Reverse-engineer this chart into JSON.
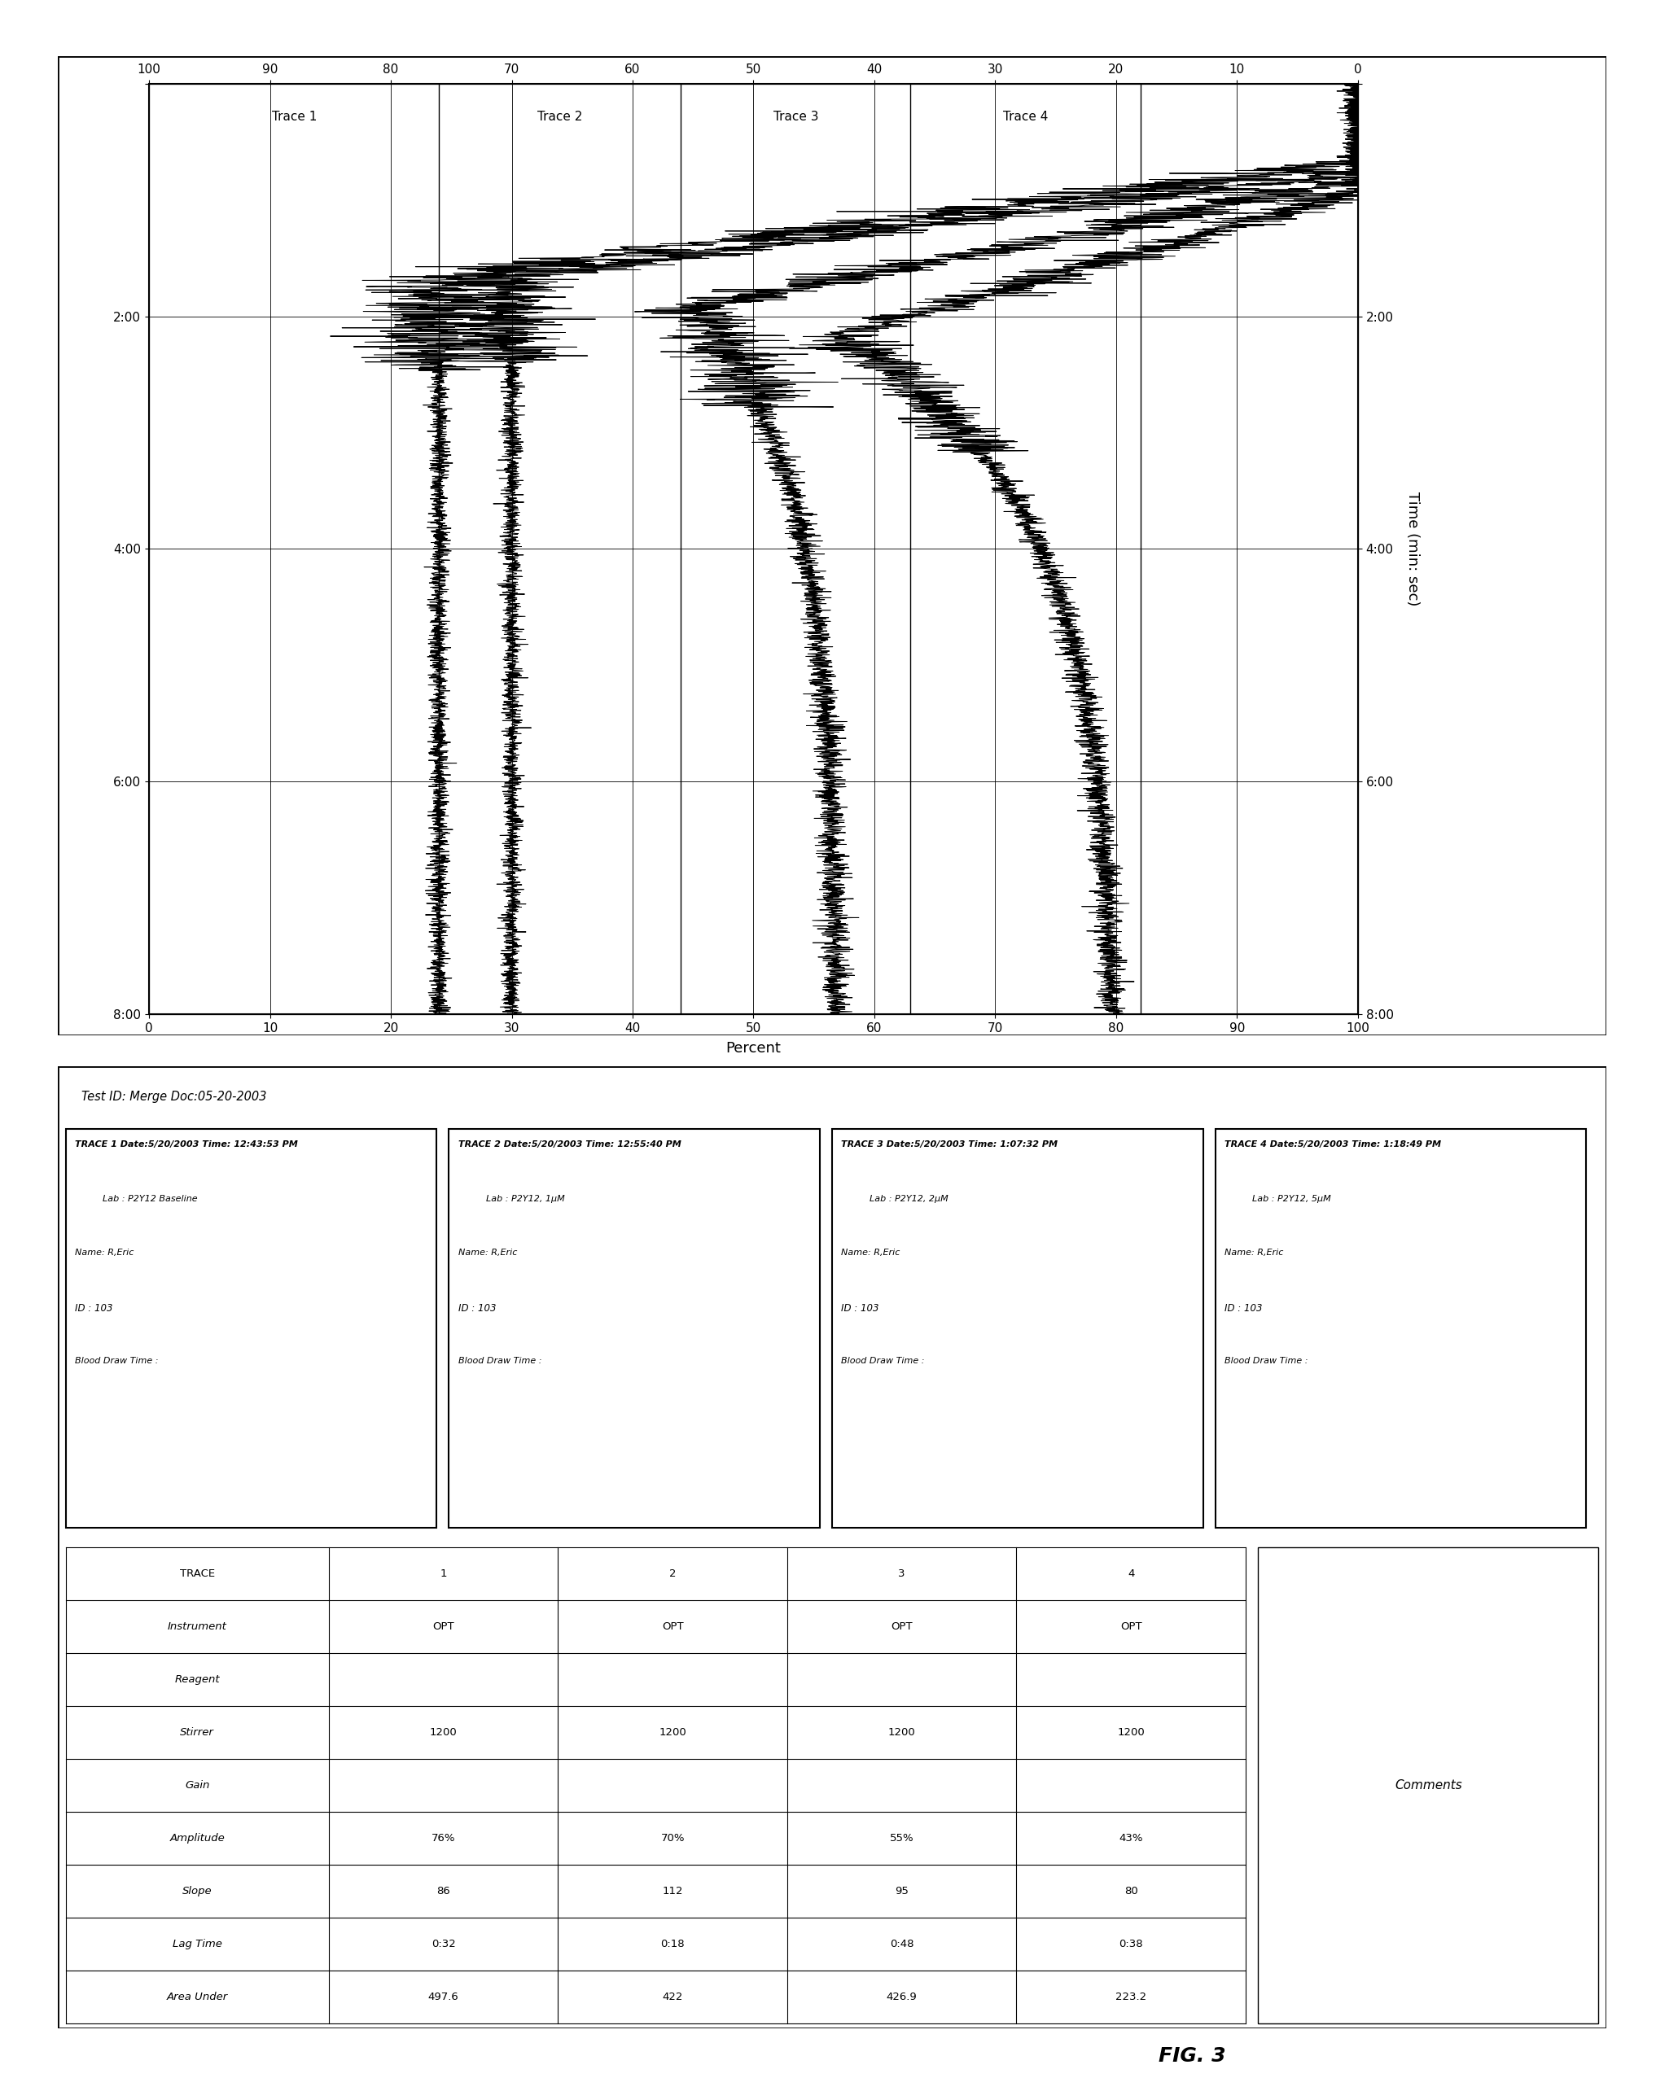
{
  "test_id": "Test ID: Merge Doc:05-20-2003",
  "traces": [
    {
      "trace_num": "TRACE 1",
      "date_time": "Date:5/20/2003 Time: 12:43:53 PM",
      "lab": "Lab : P2Y12 Baseline",
      "name": "Name: R,Eric",
      "id": "ID : 103",
      "blood_draw": "Blood Draw Time :"
    },
    {
      "trace_num": "TRACE 2",
      "date_time": "Date:5/20/2003 Time: 12:55:40 PM",
      "lab": "Lab : P2Y12, 1μM",
      "name": "Name: R,Eric",
      "id": "ID : 103",
      "blood_draw": "Blood Draw Time :"
    },
    {
      "trace_num": "TRACE 3",
      "date_time": "Date:5/20/2003 Time: 1:07:32 PM",
      "lab": "Lab : P2Y12, 2μM",
      "name": "Name: R,Eric",
      "id": "ID : 103",
      "blood_draw": "Blood Draw Time :"
    },
    {
      "trace_num": "TRACE 4",
      "date_time": "Date:5/20/2003 Time: 1:18:49 PM",
      "lab": "Lab : P2Y12, 5μM",
      "name": "Name: R,Eric",
      "id": "ID : 103",
      "blood_draw": "Blood Draw Time :"
    }
  ],
  "metrics_col_headers": [
    "TRACE",
    "1",
    "2",
    "3",
    "4"
  ],
  "metrics_rows": [
    [
      "Instrument",
      "OPT",
      "OPT",
      "OPT",
      "OPT"
    ],
    [
      "Reagent",
      "",
      "",
      "",
      ""
    ],
    [
      "Stirrer",
      "1200",
      "1200",
      "1200",
      "1200"
    ],
    [
      "Gain",
      "",
      "",
      "",
      ""
    ],
    [
      "Amplitude",
      "76%",
      "70%",
      "55%",
      "43%"
    ],
    [
      "Slope",
      "86",
      "112",
      "95",
      "80"
    ],
    [
      "Lag Time",
      "0:32",
      "0:18",
      "0:48",
      "0:38"
    ],
    [
      "Area Under",
      "497.6",
      "422",
      "426.9",
      "223.2"
    ]
  ],
  "comments_label": "Comments",
  "chart_trace_labels": [
    "Trace 1",
    "Trace 2",
    "Trace 3",
    "Trace 4"
  ],
  "chart_trace_vlines": [
    24,
    44,
    63,
    82
  ],
  "chart_pct_ticks": [
    0,
    10,
    20,
    30,
    40,
    50,
    60,
    70,
    80,
    90,
    100
  ],
  "chart_time_ticks_sec": [
    0,
    120,
    240,
    360,
    480
  ],
  "chart_time_tick_labels": [
    "",
    "2:00",
    "4:00",
    "6:00",
    "8:00"
  ],
  "chart_xlabel_bottom": "Percent",
  "chart_ylabel_right": "Time (min: sec)",
  "fig_label": "FIG. 3",
  "bg_color": "#ffffff",
  "line_color": "#000000"
}
